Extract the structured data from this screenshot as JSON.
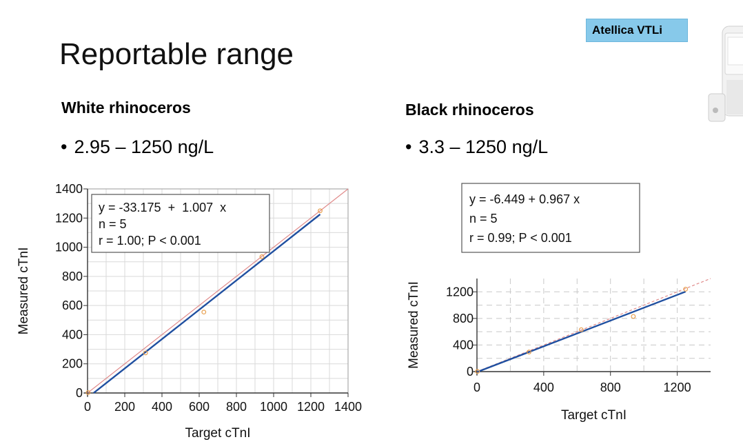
{
  "slide": {
    "title": "Reportable range",
    "badge": "Atellica VTLi"
  },
  "panels": [
    {
      "subtitle": "White rhinoceros",
      "range": "2.95 – 1250 ng/L"
    },
    {
      "subtitle": "Black rhinoceros",
      "range": "3.3 – 1250 ng/L"
    }
  ],
  "colors": {
    "regression_line": "#1f4fa0",
    "identity_line": "#e08a8a",
    "points": "#e8a050",
    "badge": "#87c9ea"
  },
  "chart_data": [
    {
      "type": "scatter",
      "title": "",
      "xlabel": "Target cTnI",
      "ylabel": "Measured cTnI",
      "xlim": [
        0,
        1400
      ],
      "ylim": [
        0,
        1400
      ],
      "xticks": [
        0,
        200,
        400,
        600,
        800,
        1000,
        1200,
        1400
      ],
      "yticks": [
        0,
        200,
        400,
        600,
        800,
        1000,
        1200,
        1400
      ],
      "grid": true,
      "points": [
        {
          "x": 3,
          "y": 3
        },
        {
          "x": 312,
          "y": 275
        },
        {
          "x": 625,
          "y": 555
        },
        {
          "x": 937,
          "y": 935
        },
        {
          "x": 1250,
          "y": 1250
        }
      ],
      "regression": {
        "intercept": -33.175,
        "slope": 1.007,
        "x_range": [
          33,
          1250
        ]
      },
      "identity_line": true,
      "annotation": [
        "y = -33.175  +  1.007  x",
        "n = 5",
        "r = 1.00; P < 0.001"
      ]
    },
    {
      "type": "scatter",
      "title": "",
      "xlabel": "Target cTnI",
      "ylabel": "Measured cTnI",
      "xlim": [
        0,
        1400
      ],
      "ylim": [
        0,
        1400
      ],
      "xticks": [
        0,
        400,
        800,
        1200
      ],
      "yticks": [
        0,
        400,
        800,
        1200
      ],
      "grid": "dashed",
      "points": [
        {
          "x": 3,
          "y": 3
        },
        {
          "x": 312,
          "y": 295
        },
        {
          "x": 625,
          "y": 630
        },
        {
          "x": 937,
          "y": 830
        },
        {
          "x": 1250,
          "y": 1240
        }
      ],
      "regression": {
        "intercept": -6.449,
        "slope": 0.967,
        "x_range": [
          3,
          1250
        ]
      },
      "identity_line": true,
      "annotation": [
        "y = -6.449 + 0.967 x",
        "n = 5",
        "r = 0.99; P < 0.001"
      ]
    }
  ]
}
